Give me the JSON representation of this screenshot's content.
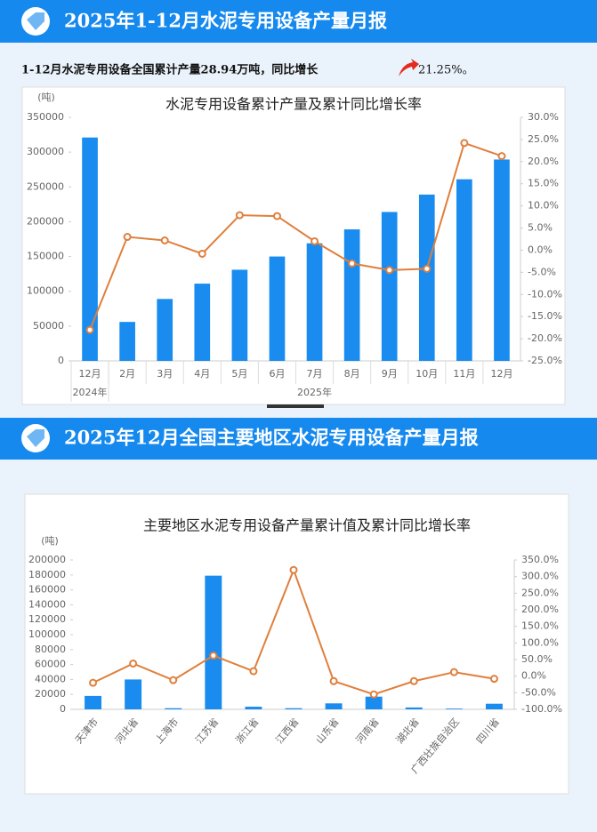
{
  "sections": [
    {
      "title": "2025年1-12月水泥专用设备产量月报",
      "summary": {
        "text": "1-12月水泥专用设备全国累计产量28.94万吨，同比增长",
        "value": "21.25%。"
      }
    },
    {
      "title": "2025年12月全国主要地区水泥专用设备产量月报"
    }
  ],
  "chart_data": [
    {
      "type": "bar-line",
      "title": "水泥专用设备累计产量及累计同比增长率",
      "y_label": "(吨)",
      "categories": [
        "12月",
        "2月",
        "3月",
        "4月",
        "5月",
        "6月",
        "7月",
        "8月",
        "9月",
        "10月",
        "11月",
        "12月"
      ],
      "x_groups": [
        {
          "label": "2024年",
          "count": 1
        },
        {
          "label": "2025年",
          "count": 11
        }
      ],
      "series": [
        {
          "type": "bar",
          "color": "#1a8cf0",
          "values": [
            321000,
            56000,
            89000,
            111000,
            131000,
            150000,
            169000,
            189000,
            214000,
            239000,
            261000,
            289400
          ]
        },
        {
          "type": "line",
          "axis": "y2",
          "color": "#e07f3c",
          "values": [
            -18.0,
            3.0,
            2.2,
            -0.8,
            7.9,
            7.7,
            2.0,
            -3.0,
            -4.5,
            -4.2,
            24.2,
            21.25
          ]
        }
      ],
      "ylim": [
        0,
        350000
      ],
      "yticks": [
        0,
        50000,
        100000,
        150000,
        200000,
        250000,
        300000,
        350000
      ],
      "y2lim": [
        -25,
        30
      ],
      "y2ticks": [
        {
          "value": -25,
          "label": "-25.0%"
        },
        {
          "value": -20,
          "label": "-20.0%"
        },
        {
          "value": -15,
          "label": "-15.0%"
        },
        {
          "value": -10,
          "label": "-10.0%"
        },
        {
          "value": -5,
          "label": "-5.0%"
        },
        {
          "value": 0,
          "label": "0.0%"
        },
        {
          "value": 5,
          "label": "5.0%"
        },
        {
          "value": 10,
          "label": "10.0%"
        },
        {
          "value": 15,
          "label": "15.0%"
        },
        {
          "value": 20,
          "label": "20.0%"
        },
        {
          "value": 25,
          "label": "25.0%"
        },
        {
          "value": 30,
          "label": "30.0%"
        }
      ]
    },
    {
      "type": "bar-line",
      "title": "主要地区水泥专用设备产量累计值及累计同比增长率",
      "y_label": "(吨)",
      "categories": [
        "天津市",
        "河北省",
        "上海市",
        "江苏省",
        "浙江省",
        "江西省",
        "山东省",
        "河南省",
        "湖北省",
        "广西壮族自治区",
        "四川省"
      ],
      "series": [
        {
          "type": "bar",
          "color": "#1a8cf0",
          "values": [
            18000,
            40000,
            1500,
            179000,
            3500,
            1500,
            8000,
            17000,
            2500,
            1000,
            7500
          ]
        },
        {
          "type": "line",
          "axis": "y2",
          "color": "#e07f3c",
          "values": [
            -20,
            38,
            -12,
            62,
            15,
            320,
            -15,
            -55,
            -15,
            12,
            -8
          ]
        }
      ],
      "ylim": [
        0,
        200000
      ],
      "yticks": [
        0,
        20000,
        40000,
        60000,
        80000,
        100000,
        120000,
        140000,
        160000,
        180000,
        200000
      ],
      "y2lim": [
        -100,
        350
      ],
      "y2ticks": [
        {
          "value": -100,
          "label": "-100.0%"
        },
        {
          "value": -50,
          "label": "-50.0%"
        },
        {
          "value": 0,
          "label": "0.0%"
        },
        {
          "value": 50,
          "label": "50.0%"
        },
        {
          "value": 100,
          "label": "100.0%"
        },
        {
          "value": 150,
          "label": "150.0%"
        },
        {
          "value": 200,
          "label": "200.0%"
        },
        {
          "value": 250,
          "label": "250.0%"
        },
        {
          "value": 300,
          "label": "300.0%"
        },
        {
          "value": 350,
          "label": "350.0%"
        }
      ]
    }
  ]
}
